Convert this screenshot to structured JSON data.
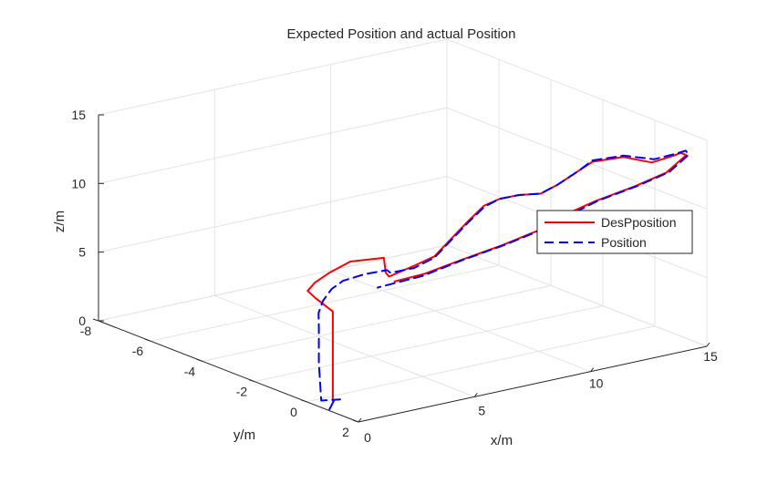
{
  "chart_data": {
    "type": "line3d",
    "title": "Expected Position and actual Position",
    "xlabel": "x/m",
    "ylabel": "y/m",
    "zlabel": "z/m",
    "xlim": [
      0,
      15
    ],
    "ylim": [
      -8,
      2
    ],
    "zlim": [
      0,
      15
    ],
    "xticks": [
      0,
      5,
      10,
      15
    ],
    "yticks": [
      2,
      0,
      -2,
      -4,
      -6,
      -8
    ],
    "zticks": [
      0,
      5,
      10,
      15
    ],
    "grid": true,
    "legend_position": "right",
    "series": [
      {
        "name": "DesPposition",
        "color": "#ff0000",
        "style": "solid",
        "points": [
          [
            0.8,
            0.3,
            0.0
          ],
          [
            0.8,
            0.3,
            6.5
          ],
          [
            0.6,
            -0.2,
            7.2
          ],
          [
            0.5,
            -0.4,
            7.6
          ],
          [
            0.7,
            -0.3,
            8.2
          ],
          [
            1.2,
            -0.2,
            8.8
          ],
          [
            2.0,
            -0.1,
            9.4
          ],
          [
            3.0,
            0.3,
            9.6
          ],
          [
            2.4,
            0.9,
            9.2
          ],
          [
            2.1,
            1.3,
            9.3
          ],
          [
            3.5,
            1.1,
            9.5
          ],
          [
            4.5,
            0.9,
            9.6
          ],
          [
            6.0,
            0.2,
            9.8
          ],
          [
            7.5,
            -0.5,
            10.0
          ],
          [
            9.0,
            -1.2,
            10.1
          ],
          [
            10.0,
            -1.5,
            10.0
          ],
          [
            10.6,
            -1.3,
            10.2
          ],
          [
            11.2,
            -1.0,
            10.3
          ],
          [
            12.0,
            -1.3,
            10.2
          ],
          [
            12.6,
            -1.6,
            10.0
          ],
          [
            13.4,
            -1.8,
            10.2
          ],
          [
            14.2,
            -2.2,
            10.0
          ],
          [
            15.0,
            -2.4,
            10.2
          ],
          [
            16.0,
            -2.1,
            10.4
          ],
          [
            16.1,
            -1.1,
            10.7
          ],
          [
            16.7,
            -0.8,
            11.2
          ],
          [
            16.9,
            -0.7,
            11.4
          ],
          [
            16.8,
            -0.4,
            11.5
          ],
          [
            15.5,
            0.0,
            11.0
          ],
          [
            14.0,
            0.1,
            10.6
          ],
          [
            12.0,
            0.4,
            10.5
          ],
          [
            10.5,
            0.7,
            10.4
          ],
          [
            9.0,
            1.0,
            10.0
          ],
          [
            7.0,
            1.3,
            9.8
          ],
          [
            5.0,
            1.5,
            9.6
          ],
          [
            3.2,
            1.7,
            9.4
          ],
          [
            2.0,
            1.6,
            9.2
          ]
        ]
      },
      {
        "name": "Position",
        "color": "#0000ff",
        "style": "dashed",
        "points": [
          [
            0.1,
            0.8,
            0.0
          ],
          [
            0.5,
            0.6,
            0.3
          ],
          [
            1.0,
            0.4,
            0.1
          ],
          [
            0.3,
            0.3,
            0.2
          ],
          [
            0.2,
            0.3,
            3.0
          ],
          [
            0.2,
            0.3,
            5.5
          ],
          [
            0.3,
            0.2,
            6.5
          ],
          [
            0.6,
            0.1,
            7.2
          ],
          [
            1.2,
            -0.1,
            7.7
          ],
          [
            1.8,
            -0.2,
            8.0
          ],
          [
            2.3,
            0.2,
            8.6
          ],
          [
            2.8,
            0.6,
            9.0
          ],
          [
            2.6,
            0.9,
            9.1
          ],
          [
            3.4,
            1.1,
            9.3
          ],
          [
            4.5,
            0.9,
            9.5
          ],
          [
            6.0,
            0.2,
            9.7
          ],
          [
            7.5,
            -0.5,
            9.9
          ],
          [
            9.0,
            -1.2,
            10.0
          ],
          [
            10.0,
            -1.5,
            10.0
          ],
          [
            10.6,
            -1.3,
            10.2
          ],
          [
            11.2,
            -1.0,
            10.3
          ],
          [
            12.0,
            -1.3,
            10.2
          ],
          [
            12.6,
            -1.6,
            10.0
          ],
          [
            13.4,
            -1.8,
            10.2
          ],
          [
            14.2,
            -2.2,
            10.0
          ],
          [
            15.0,
            -2.4,
            10.3
          ],
          [
            16.0,
            -2.1,
            10.5
          ],
          [
            16.2,
            -1.1,
            10.9
          ],
          [
            16.8,
            -0.8,
            11.3
          ],
          [
            17.0,
            -0.6,
            11.6
          ],
          [
            16.8,
            -0.3,
            11.6
          ],
          [
            15.5,
            0.1,
            11.1
          ],
          [
            14.0,
            0.2,
            10.7
          ],
          [
            12.0,
            0.5,
            10.6
          ],
          [
            10.5,
            0.8,
            10.4
          ],
          [
            9.0,
            1.1,
            10.1
          ],
          [
            7.0,
            1.4,
            9.9
          ],
          [
            5.0,
            1.6,
            9.7
          ],
          [
            3.0,
            1.8,
            9.4
          ],
          [
            1.5,
            1.4,
            8.8
          ]
        ]
      }
    ]
  }
}
